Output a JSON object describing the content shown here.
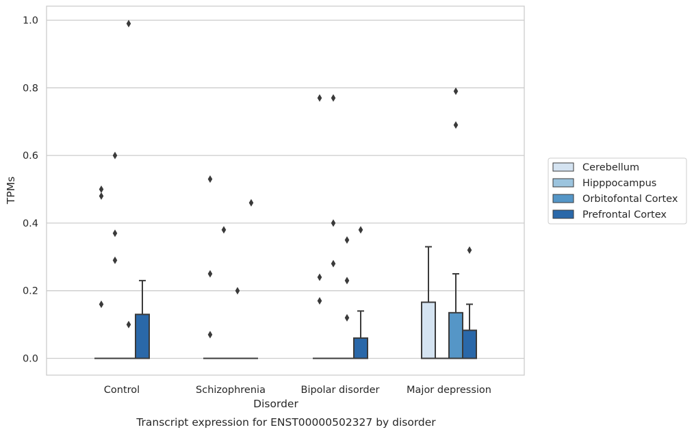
{
  "chart_data": {
    "type": "box",
    "caption": "Transcript expression for ENST00000502327 by disorder",
    "xlabel": "Disorder",
    "ylabel": "TPMs",
    "ylim": [
      -0.05,
      1.04
    ],
    "yticks": [
      "0.0",
      "0.2",
      "0.4",
      "0.6",
      "0.8",
      "1.0"
    ],
    "grid": "horizontal",
    "legend_position": "right",
    "categories": [
      "Control",
      "Schizophrenia",
      "Bipolar disorder",
      "Major depression"
    ],
    "series": [
      {
        "name": "Cerebellum",
        "color": "#d4e3f1",
        "boxes": [
          {
            "q1": 0,
            "median": 0,
            "q3": 0,
            "whisker_low": 0,
            "whisker_high": 0,
            "outliers": [
              0.16,
              0.48,
              0.5
            ]
          },
          {
            "q1": 0,
            "median": 0,
            "q3": 0,
            "whisker_low": 0,
            "whisker_high": 0,
            "outliers": [
              0.07,
              0.25,
              0.53
            ]
          },
          {
            "q1": 0,
            "median": 0,
            "q3": 0,
            "whisker_low": 0,
            "whisker_high": 0,
            "outliers": [
              0.17,
              0.24,
              0.77
            ]
          },
          {
            "q1": 0,
            "median": 0,
            "q3": 0.166,
            "whisker_low": 0,
            "whisker_high": 0.33,
            "outliers": []
          }
        ]
      },
      {
        "name": "Hipppocampus",
        "color": "#9cc4de",
        "boxes": [
          {
            "q1": 0,
            "median": 0,
            "q3": 0,
            "whisker_low": 0,
            "whisker_high": 0,
            "outliers": [
              0.29,
              0.37,
              0.6
            ]
          },
          {
            "q1": 0,
            "median": 0,
            "q3": 0,
            "whisker_low": 0,
            "whisker_high": 0,
            "outliers": [
              0.38
            ]
          },
          {
            "q1": 0,
            "median": 0,
            "q3": 0,
            "whisker_low": 0,
            "whisker_high": 0,
            "outliers": [
              0.28,
              0.4,
              0.77
            ]
          },
          {
            "q1": 0,
            "median": 0,
            "q3": 0,
            "whisker_low": 0,
            "whisker_high": 0,
            "outliers": []
          }
        ]
      },
      {
        "name": "Orbitofontal Cortex",
        "color": "#5596c7",
        "boxes": [
          {
            "q1": 0,
            "median": 0,
            "q3": 0,
            "whisker_low": 0,
            "whisker_high": 0,
            "outliers": [
              0.1,
              0.99
            ]
          },
          {
            "q1": 0,
            "median": 0,
            "q3": 0,
            "whisker_low": 0,
            "whisker_high": 0,
            "outliers": [
              0.2
            ]
          },
          {
            "q1": 0,
            "median": 0,
            "q3": 0,
            "whisker_low": 0,
            "whisker_high": 0,
            "outliers": [
              0.12,
              0.23,
              0.35
            ]
          },
          {
            "q1": 0,
            "median": 0,
            "q3": 0.135,
            "whisker_low": 0,
            "whisker_high": 0.25,
            "outliers": [
              0.69,
              0.79
            ]
          }
        ]
      },
      {
        "name": "Prefrontal Cortex",
        "color": "#2a68a9",
        "boxes": [
          {
            "q1": 0,
            "median": 0,
            "q3": 0.13,
            "whisker_low": 0,
            "whisker_high": 0.23,
            "outliers": []
          },
          {
            "q1": 0,
            "median": 0,
            "q3": 0,
            "whisker_low": 0,
            "whisker_high": 0,
            "outliers": [
              0.46
            ]
          },
          {
            "q1": 0,
            "median": 0,
            "q3": 0.06,
            "whisker_low": 0,
            "whisker_high": 0.14,
            "outliers": [
              0.38
            ]
          },
          {
            "q1": 0,
            "median": 0,
            "q3": 0.083,
            "whisker_low": 0,
            "whisker_high": 0.16,
            "outliers": [
              0.32
            ]
          }
        ]
      }
    ]
  }
}
